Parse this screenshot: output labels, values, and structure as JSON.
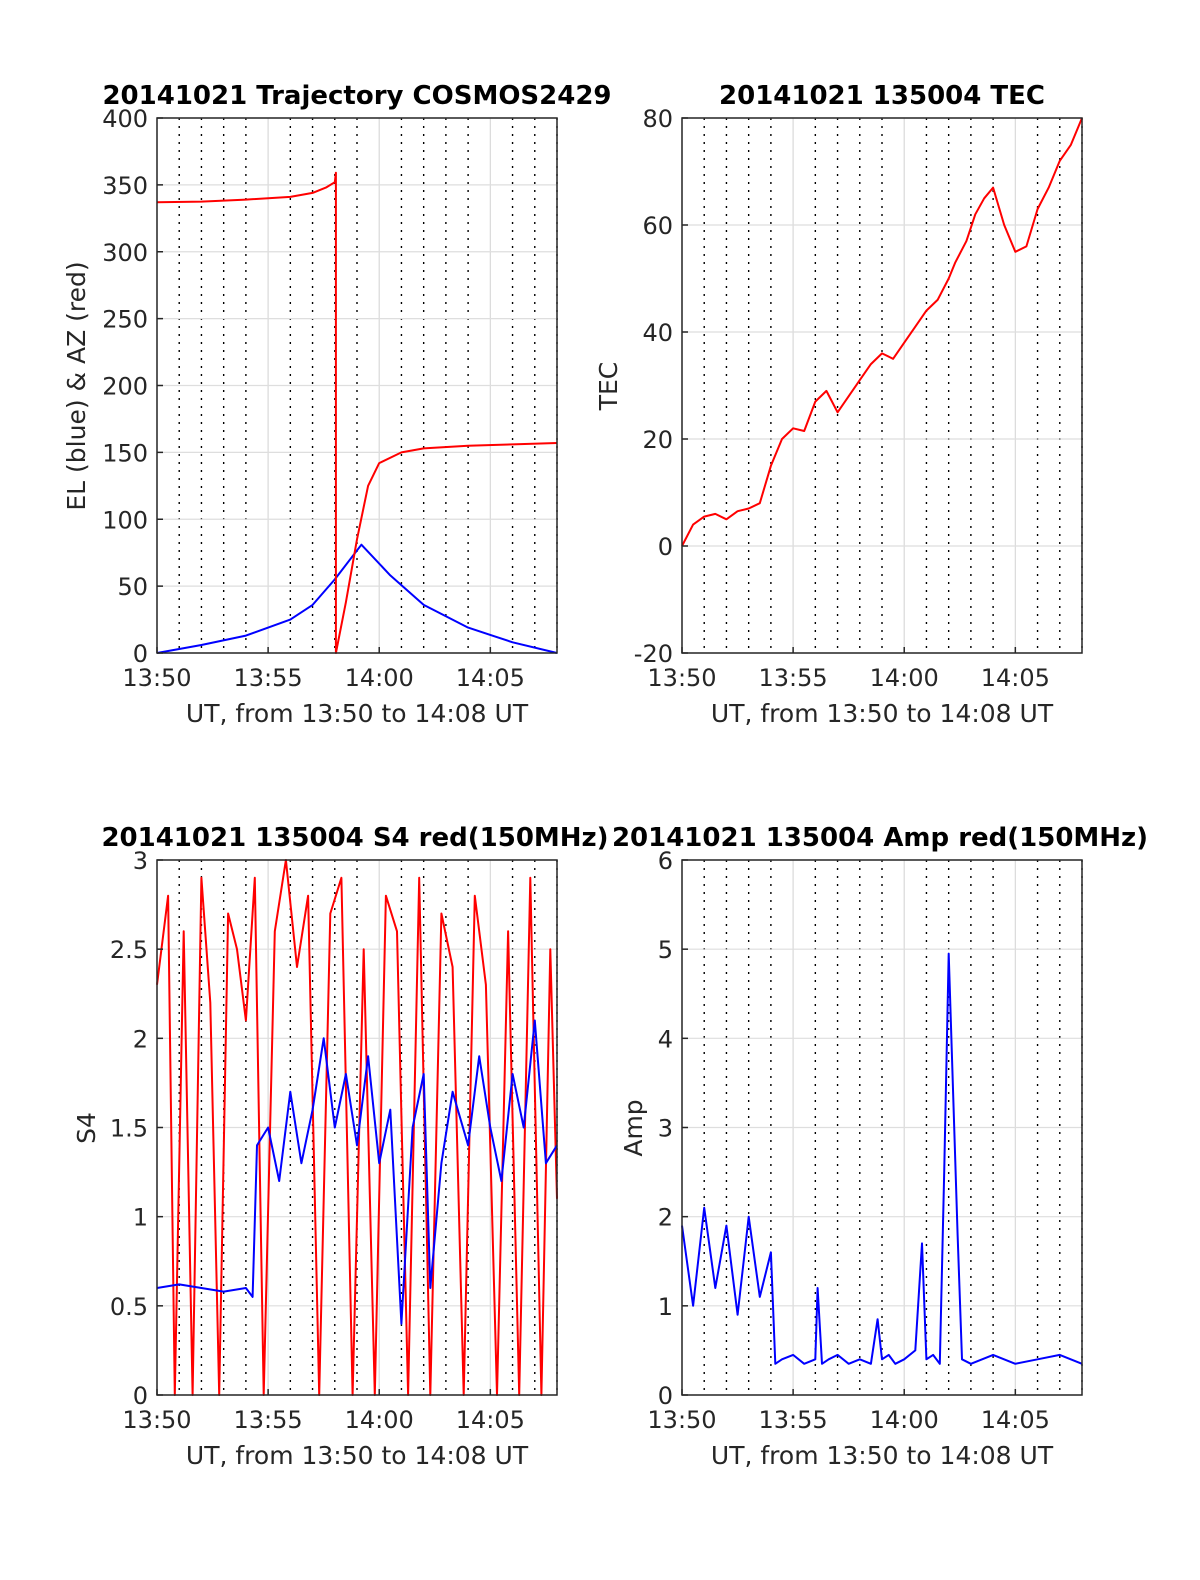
{
  "chart_data": [
    {
      "id": "trajectory",
      "type": "line",
      "title": "20141021 Trajectory COSMOS2429",
      "xlabel": "UT, from 13:50 to 14:08 UT",
      "ylabel": "EL (blue) & AZ (red)",
      "xlim": [
        0,
        18
      ],
      "ylim": [
        0,
        400
      ],
      "x_tick_values": [
        0,
        5,
        10,
        15
      ],
      "x_tick_labels": [
        "13:50",
        "13:55",
        "14:00",
        "14:05"
      ],
      "y_ticks": [
        0,
        50,
        100,
        150,
        200,
        250,
        300,
        350,
        400
      ],
      "minor_x_grid_step": 1,
      "grid": true,
      "series": [
        {
          "color": "#0000ff",
          "x": [
            0,
            2,
            4,
            6,
            7,
            8,
            9.2,
            10.5,
            12,
            14,
            16,
            18
          ],
          "values": [
            0,
            6,
            13,
            25,
            36,
            55,
            81,
            58,
            36,
            19,
            8,
            0
          ]
        },
        {
          "color": "#ff0000",
          "x": [
            0,
            2,
            4,
            6,
            7,
            7.6,
            8.0,
            8.05,
            8.05,
            8.5,
            9,
            9.5,
            10,
            11,
            12,
            14,
            16,
            18
          ],
          "values": [
            337,
            337.5,
            339,
            341,
            344,
            348,
            352,
            359,
            0,
            38,
            85,
            125,
            142,
            150,
            153,
            155,
            156,
            157
          ]
        }
      ]
    },
    {
      "id": "tec",
      "type": "line",
      "title": "20141021 135004 TEC",
      "xlabel": "UT, from 13:50 to 14:08 UT",
      "ylabel": "TEC",
      "xlim": [
        0,
        18
      ],
      "ylim": [
        -20,
        80
      ],
      "x_tick_values": [
        0,
        5,
        10,
        15
      ],
      "x_tick_labels": [
        "13:50",
        "13:55",
        "14:00",
        "14:05"
      ],
      "y_ticks": [
        -20,
        0,
        20,
        40,
        60,
        80
      ],
      "minor_x_grid_step": 1,
      "grid": true,
      "series": [
        {
          "color": "#ff0000",
          "x": [
            0,
            0.5,
            1,
            1.5,
            2,
            2.5,
            3,
            3.5,
            4,
            4.5,
            5,
            5.5,
            6,
            6.5,
            7,
            7.5,
            8,
            8.5,
            9,
            9.5,
            10,
            10.5,
            11,
            11.5,
            12,
            12.3,
            12.8,
            13.2,
            13.6,
            14,
            14.5,
            15,
            15.5,
            16,
            16.5,
            17,
            17.5,
            18
          ],
          "values": [
            0,
            4,
            5.5,
            6,
            5,
            6.5,
            7,
            8,
            15,
            20,
            22,
            21.5,
            27,
            29,
            25,
            28,
            31,
            34,
            36,
            35,
            38,
            41,
            44,
            46,
            50,
            53,
            57,
            62,
            65,
            67,
            60,
            55,
            56,
            63,
            67,
            72,
            75,
            80
          ]
        }
      ]
    },
    {
      "id": "s4",
      "type": "line",
      "title": "20141021 135004 S4 red(150MHz)",
      "xlabel": "UT, from 13:50 to 14:08 UT",
      "ylabel": "S4",
      "xlim": [
        0,
        18
      ],
      "ylim": [
        0,
        3
      ],
      "x_tick_values": [
        0,
        5,
        10,
        15
      ],
      "x_tick_labels": [
        "13:50",
        "13:55",
        "14:00",
        "14:05"
      ],
      "y_ticks": [
        0,
        0.5,
        1,
        1.5,
        2,
        2.5,
        3
      ],
      "y_tick_labels": [
        "0",
        "0.5",
        "1",
        "1.5",
        "2",
        "2.5",
        "3"
      ],
      "minor_x_grid_step": 1,
      "grid": true,
      "series": [
        {
          "color": "#ff0000",
          "x": [
            0,
            0.5,
            0.8,
            1.2,
            1.6,
            2.0,
            2.4,
            2.8,
            3.2,
            3.6,
            4.0,
            4.4,
            4.8,
            5.3,
            5.8,
            6.3,
            6.8,
            7.3,
            7.8,
            8.3,
            8.8,
            9.3,
            9.8,
            10.3,
            10.8,
            11.3,
            11.8,
            12.3,
            12.8,
            13.3,
            13.8,
            14.3,
            14.8,
            15.3,
            15.8,
            16.3,
            16.8,
            17.3,
            17.7,
            18
          ],
          "values": [
            2.3,
            2.8,
            0,
            2.6,
            0,
            2.9,
            2.2,
            0,
            2.7,
            2.5,
            2.1,
            2.9,
            0,
            2.6,
            3.0,
            2.4,
            2.8,
            0,
            2.7,
            2.9,
            0,
            2.5,
            0,
            2.8,
            2.6,
            0,
            2.9,
            0,
            2.7,
            2.4,
            0,
            2.8,
            2.3,
            0,
            2.6,
            0,
            2.9,
            0,
            2.5,
            1.1
          ]
        },
        {
          "color": "#0000ff",
          "x": [
            0,
            1,
            2,
            3,
            4,
            4.3,
            4.5,
            5,
            5.5,
            6,
            6.5,
            7,
            7.5,
            8,
            8.5,
            9,
            9.5,
            10,
            10.5,
            11,
            11.5,
            12,
            12.3,
            12.8,
            13.3,
            14,
            14.5,
            15,
            15.5,
            16,
            16.5,
            17,
            17.5,
            18
          ],
          "values": [
            0.6,
            0.62,
            0.6,
            0.58,
            0.6,
            0.55,
            1.4,
            1.5,
            1.2,
            1.7,
            1.3,
            1.6,
            2.0,
            1.5,
            1.8,
            1.4,
            1.9,
            1.3,
            1.6,
            0.4,
            1.5,
            1.8,
            0.6,
            1.3,
            1.7,
            1.4,
            1.9,
            1.5,
            1.2,
            1.8,
            1.5,
            2.1,
            1.3,
            1.4
          ]
        }
      ]
    },
    {
      "id": "amp",
      "type": "line",
      "title": "20141021 135004 Amp red(150MHz)",
      "xlabel": "UT, from 13:50 to 14:08 UT",
      "ylabel": "Amp",
      "xlim": [
        0,
        18
      ],
      "ylim": [
        0,
        6
      ],
      "x_tick_values": [
        0,
        5,
        10,
        15
      ],
      "x_tick_labels": [
        "13:50",
        "13:55",
        "14:00",
        "14:05"
      ],
      "y_ticks": [
        0,
        1,
        2,
        3,
        4,
        5,
        6
      ],
      "minor_x_grid_step": 1,
      "grid": true,
      "series": [
        {
          "color": "#0000ff",
          "x": [
            0,
            0.5,
            1,
            1.5,
            2,
            2.5,
            3,
            3.5,
            4,
            4.2,
            4.5,
            5,
            5.5,
            6,
            6.1,
            6.3,
            6.6,
            7,
            7.5,
            8,
            8.5,
            8.8,
            9.0,
            9.3,
            9.6,
            10,
            10.5,
            10.8,
            11.0,
            11.3,
            11.6,
            11.8,
            12.0,
            12.4,
            12.6,
            13,
            14,
            15,
            16,
            17,
            18
          ],
          "values": [
            1.9,
            1.0,
            2.1,
            1.2,
            1.9,
            0.9,
            2.0,
            1.1,
            1.6,
            0.35,
            0.4,
            0.45,
            0.35,
            0.4,
            1.2,
            0.35,
            0.4,
            0.45,
            0.35,
            0.4,
            0.35,
            0.85,
            0.4,
            0.45,
            0.35,
            0.4,
            0.5,
            1.7,
            0.4,
            0.45,
            0.35,
            2.5,
            4.95,
            1.8,
            0.4,
            0.35,
            0.45,
            0.35,
            0.4,
            0.45,
            0.35
          ]
        }
      ]
    }
  ]
}
